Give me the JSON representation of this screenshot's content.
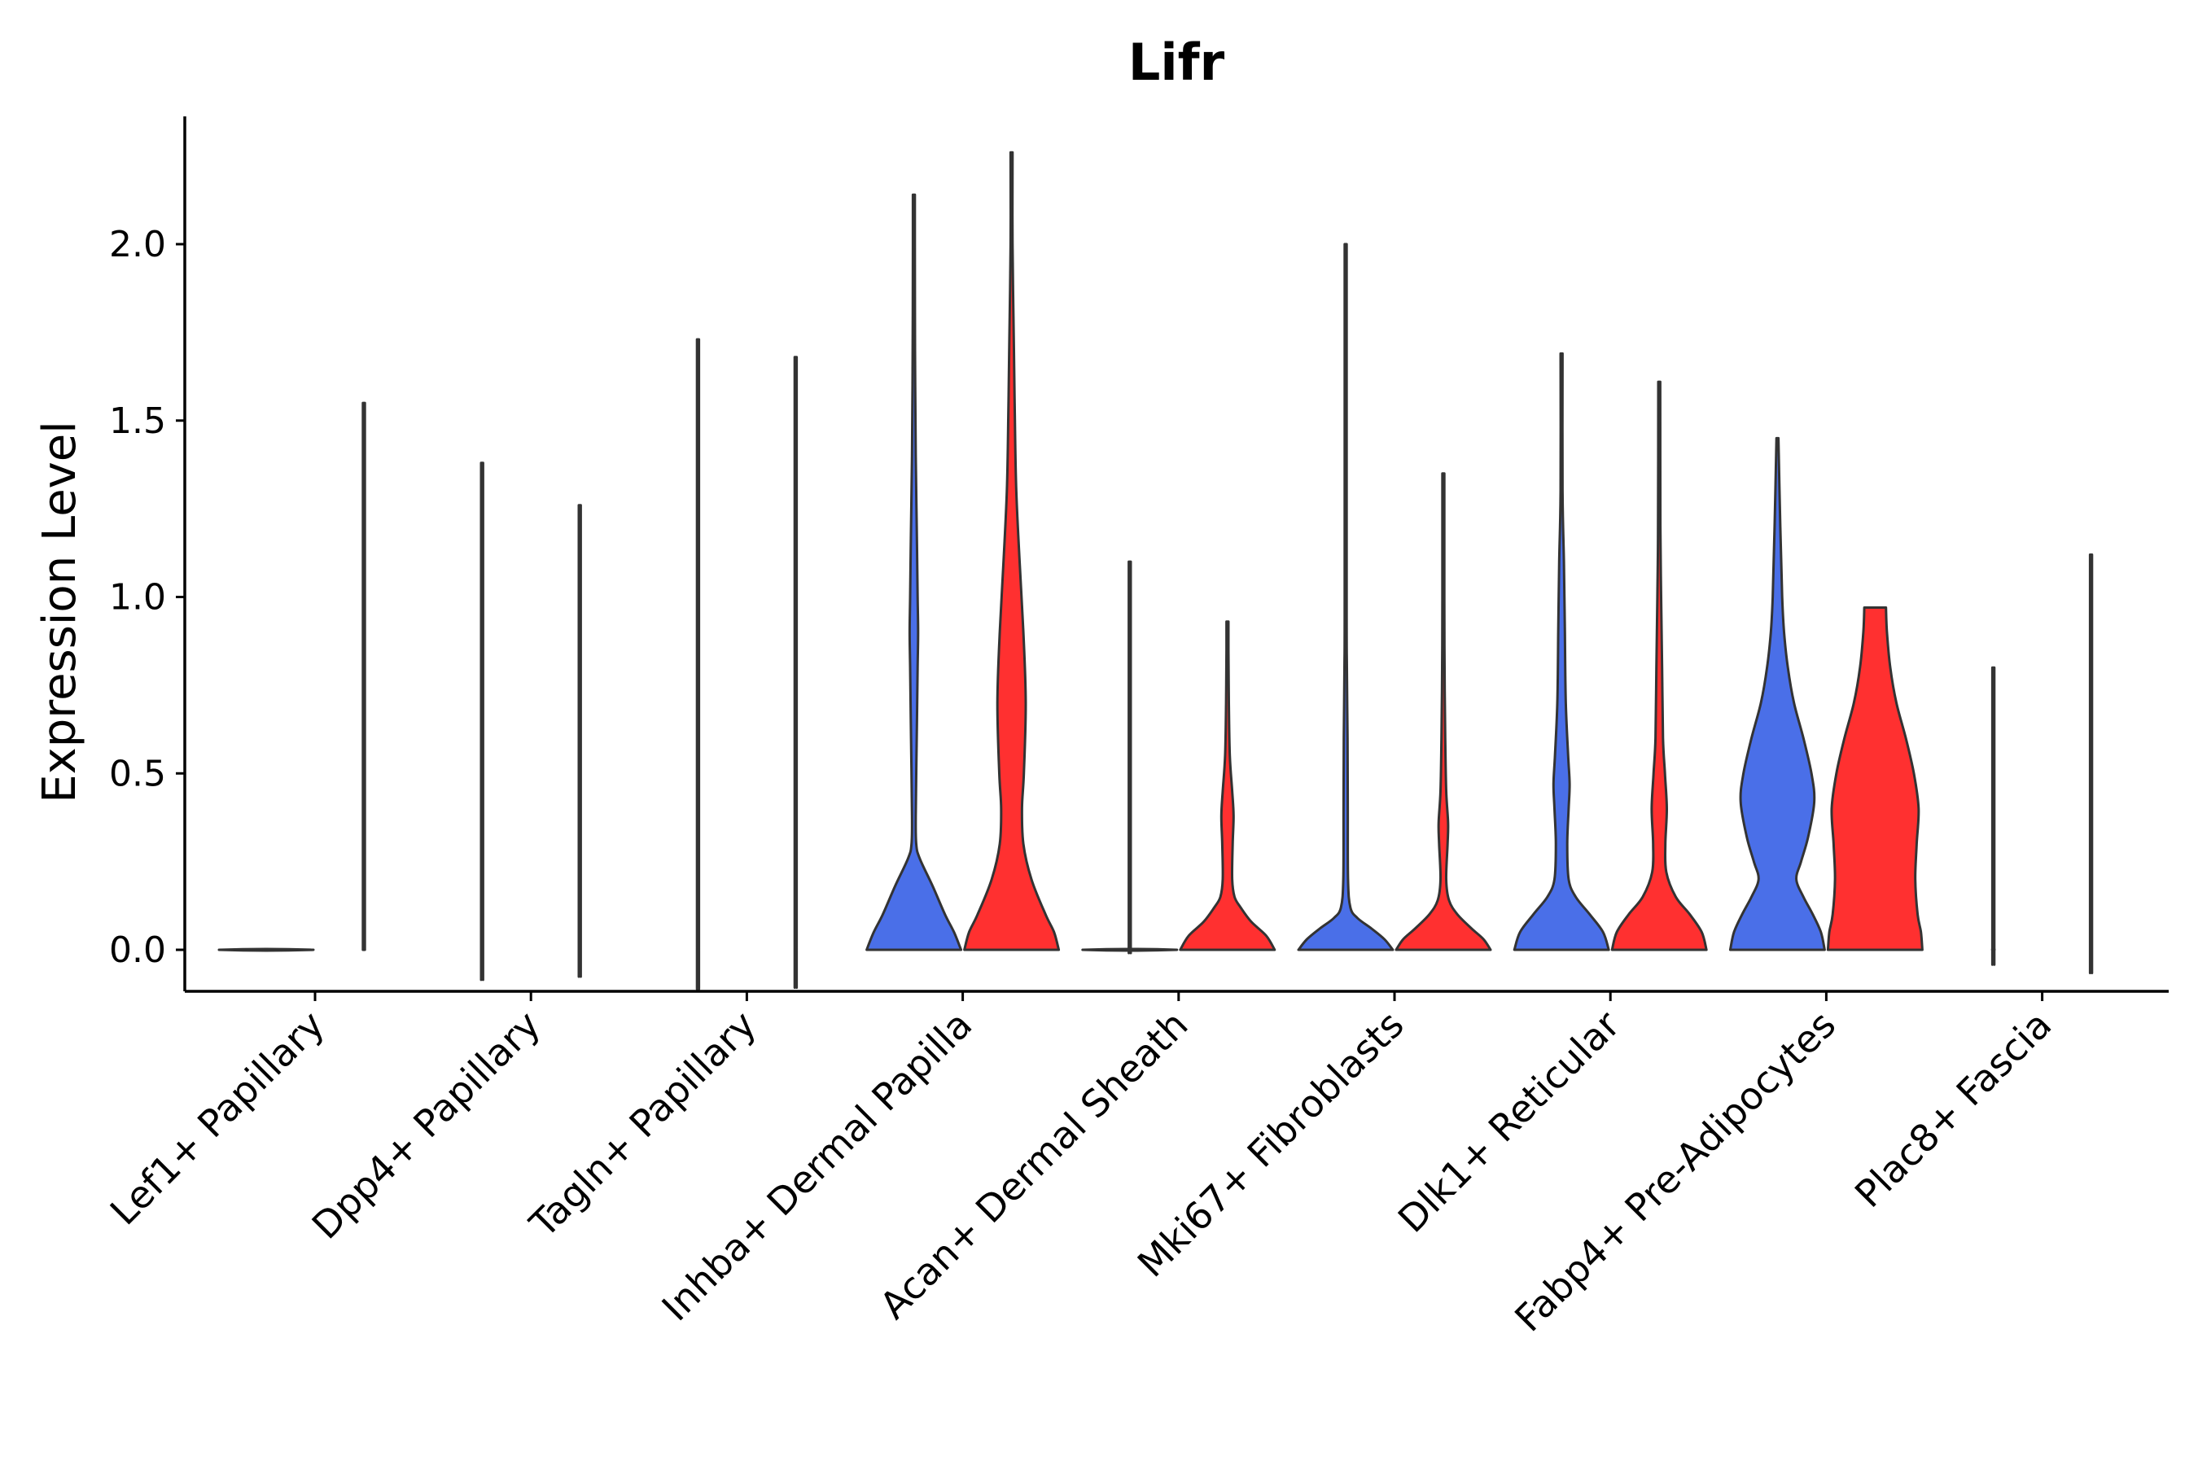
{
  "chart_data": {
    "type": "violin",
    "title": "Lifr",
    "xlabel": "",
    "ylabel": "Expression Level",
    "ylim": [
      -0.11,
      2.37
    ],
    "yticks": [
      "0.0",
      "0.5",
      "1.0",
      "1.5",
      "2.0"
    ],
    "ytick_values": [
      0,
      0.5,
      1.0,
      1.5,
      2.0
    ],
    "categories": [
      "Lef1+ Papillary",
      "Dpp4+ Papillary",
      "Tagln+ Papillary",
      "Inhba+ Dermal Papilla",
      "Acan+ Dermal Sheath",
      "Mki67+ Fibroblasts",
      "Dlk1+ Reticular",
      "Fabp4+ Pre-Adipocytes",
      "Plac8+ Fascia"
    ],
    "colors": {
      "group1": "#4a6fe8",
      "group2": "#ff3030",
      "outline": "#333333"
    },
    "violins": [
      {
        "category": 0,
        "group": 1,
        "max": 1.55,
        "profile": [
          [
            0,
            0.02
          ],
          [
            0.005,
            0.01
          ],
          [
            0.02,
            0.008
          ],
          [
            0.1,
            0.005
          ],
          [
            0.6,
            0.005
          ],
          [
            1.55,
            0.005
          ]
        ]
      },
      {
        "category": 1,
        "group": 0,
        "max": 1.38,
        "profile": [
          [
            0,
            0.02
          ],
          [
            0.005,
            0.008
          ],
          [
            0.02,
            0.005
          ],
          [
            1.38,
            0.005
          ]
        ]
      },
      {
        "category": 1,
        "group": 1,
        "max": 1.26,
        "profile": [
          [
            0,
            0.02
          ],
          [
            0.005,
            0.008
          ],
          [
            0.02,
            0.005
          ],
          [
            1.26,
            0.005
          ]
        ]
      },
      {
        "category": 2,
        "group": 0,
        "max": 1.73,
        "profile": [
          [
            0,
            0.02
          ],
          [
            0.005,
            0.008
          ],
          [
            0.02,
            0.005
          ],
          [
            1.73,
            0.005
          ]
        ]
      },
      {
        "category": 2,
        "group": 1,
        "max": 1.68,
        "profile": [
          [
            0,
            0.02
          ],
          [
            0.005,
            0.008
          ],
          [
            0.02,
            0.005
          ],
          [
            1.68,
            0.005
          ]
        ]
      },
      {
        "category": 3,
        "group": 0,
        "max": 2.14,
        "profile": [
          [
            0,
            1.0
          ],
          [
            0.05,
            0.85
          ],
          [
            0.1,
            0.66
          ],
          [
            0.18,
            0.4
          ],
          [
            0.26,
            0.12
          ],
          [
            0.3,
            0.05
          ],
          [
            0.38,
            0.04
          ],
          [
            0.6,
            0.06
          ],
          [
            0.8,
            0.08
          ],
          [
            0.9,
            0.09
          ],
          [
            1.0,
            0.08
          ],
          [
            1.2,
            0.06
          ],
          [
            1.4,
            0.04
          ],
          [
            1.7,
            0.025
          ],
          [
            2.0,
            0.015
          ],
          [
            2.14,
            0.005
          ]
        ]
      },
      {
        "category": 3,
        "group": 1,
        "max": 2.26,
        "profile": [
          [
            0,
            1.0
          ],
          [
            0.05,
            0.9
          ],
          [
            0.1,
            0.72
          ],
          [
            0.2,
            0.42
          ],
          [
            0.3,
            0.25
          ],
          [
            0.4,
            0.22
          ],
          [
            0.5,
            0.26
          ],
          [
            0.7,
            0.3
          ],
          [
            0.9,
            0.25
          ],
          [
            1.1,
            0.17
          ],
          [
            1.3,
            0.1
          ],
          [
            1.5,
            0.07
          ],
          [
            1.7,
            0.05
          ],
          [
            2.0,
            0.02
          ],
          [
            2.26,
            0.005
          ]
        ]
      },
      {
        "category": 4,
        "group": 0,
        "max": 1.1,
        "profile": [
          [
            0,
            0.025
          ],
          [
            0.005,
            0.01
          ],
          [
            0.02,
            0.006
          ],
          [
            0.35,
            0.006
          ],
          [
            1.1,
            0.005
          ]
        ]
      },
      {
        "category": 4,
        "group": 1,
        "max": 0.93,
        "profile": [
          [
            0,
            1.0
          ],
          [
            0.04,
            0.82
          ],
          [
            0.08,
            0.5
          ],
          [
            0.12,
            0.28
          ],
          [
            0.15,
            0.15
          ],
          [
            0.2,
            0.1
          ],
          [
            0.3,
            0.11
          ],
          [
            0.38,
            0.13
          ],
          [
            0.45,
            0.1
          ],
          [
            0.55,
            0.05
          ],
          [
            0.7,
            0.03
          ],
          [
            0.85,
            0.02
          ],
          [
            0.93,
            0.01
          ]
        ]
      },
      {
        "category": 5,
        "group": 0,
        "max": 2.0,
        "profile": [
          [
            0,
            1.0
          ],
          [
            0.03,
            0.82
          ],
          [
            0.06,
            0.55
          ],
          [
            0.09,
            0.25
          ],
          [
            0.12,
            0.1
          ],
          [
            0.2,
            0.05
          ],
          [
            0.4,
            0.045
          ],
          [
            0.6,
            0.04
          ],
          [
            0.8,
            0.025
          ],
          [
            1.0,
            0.012
          ],
          [
            2.0,
            0.005
          ]
        ]
      },
      {
        "category": 5,
        "group": 1,
        "max": 1.35,
        "profile": [
          [
            0,
            1.0
          ],
          [
            0.03,
            0.85
          ],
          [
            0.06,
            0.6
          ],
          [
            0.1,
            0.3
          ],
          [
            0.14,
            0.12
          ],
          [
            0.2,
            0.06
          ],
          [
            0.3,
            0.09
          ],
          [
            0.36,
            0.1
          ],
          [
            0.45,
            0.06
          ],
          [
            0.6,
            0.04
          ],
          [
            0.8,
            0.025
          ],
          [
            1.0,
            0.01
          ],
          [
            1.35,
            0.005
          ]
        ]
      },
      {
        "category": 6,
        "group": 0,
        "max": 1.69,
        "profile": [
          [
            0,
            1.0
          ],
          [
            0.05,
            0.88
          ],
          [
            0.1,
            0.6
          ],
          [
            0.15,
            0.3
          ],
          [
            0.2,
            0.15
          ],
          [
            0.3,
            0.12
          ],
          [
            0.4,
            0.15
          ],
          [
            0.47,
            0.17
          ],
          [
            0.55,
            0.14
          ],
          [
            0.7,
            0.09
          ],
          [
            0.9,
            0.07
          ],
          [
            1.1,
            0.05
          ],
          [
            1.3,
            0.02
          ],
          [
            1.69,
            0.005
          ]
        ]
      },
      {
        "category": 6,
        "group": 1,
        "max": 1.61,
        "profile": [
          [
            0,
            1.0
          ],
          [
            0.05,
            0.9
          ],
          [
            0.1,
            0.65
          ],
          [
            0.15,
            0.35
          ],
          [
            0.22,
            0.15
          ],
          [
            0.3,
            0.13
          ],
          [
            0.4,
            0.16
          ],
          [
            0.5,
            0.12
          ],
          [
            0.6,
            0.08
          ],
          [
            0.8,
            0.06
          ],
          [
            1.0,
            0.04
          ],
          [
            1.2,
            0.025
          ],
          [
            1.61,
            0.005
          ]
        ]
      },
      {
        "category": 7,
        "group": 0,
        "max": 1.45,
        "profile": [
          [
            0,
            1.0
          ],
          [
            0.05,
            0.92
          ],
          [
            0.1,
            0.75
          ],
          [
            0.15,
            0.55
          ],
          [
            0.2,
            0.4
          ],
          [
            0.25,
            0.5
          ],
          [
            0.32,
            0.65
          ],
          [
            0.42,
            0.78
          ],
          [
            0.5,
            0.72
          ],
          [
            0.6,
            0.55
          ],
          [
            0.7,
            0.35
          ],
          [
            0.8,
            0.22
          ],
          [
            0.9,
            0.14
          ],
          [
            1.0,
            0.1
          ],
          [
            1.2,
            0.06
          ],
          [
            1.45,
            0.01
          ]
        ]
      },
      {
        "category": 7,
        "group": 1,
        "max": 0.97,
        "profile": [
          [
            0,
            1.0
          ],
          [
            0.05,
            0.97
          ],
          [
            0.1,
            0.9
          ],
          [
            0.2,
            0.85
          ],
          [
            0.3,
            0.88
          ],
          [
            0.4,
            0.92
          ],
          [
            0.5,
            0.82
          ],
          [
            0.6,
            0.65
          ],
          [
            0.7,
            0.45
          ],
          [
            0.8,
            0.32
          ],
          [
            0.9,
            0.25
          ],
          [
            0.97,
            0.23
          ]
        ]
      },
      {
        "category": 8,
        "group": 0,
        "max": 0.8,
        "profile": [
          [
            0,
            0.025
          ],
          [
            0.005,
            0.01
          ],
          [
            0.02,
            0.006
          ],
          [
            0.8,
            0.005
          ]
        ]
      },
      {
        "category": 8,
        "group": 1,
        "max": 1.12,
        "profile": [
          [
            0,
            0.02
          ],
          [
            0.005,
            0.008
          ],
          [
            0.02,
            0.005
          ],
          [
            1.12,
            0.005
          ]
        ]
      }
    ],
    "flat_violins": [
      {
        "category": 0,
        "group": 0
      },
      {
        "category": 4,
        "group": 0
      }
    ]
  }
}
